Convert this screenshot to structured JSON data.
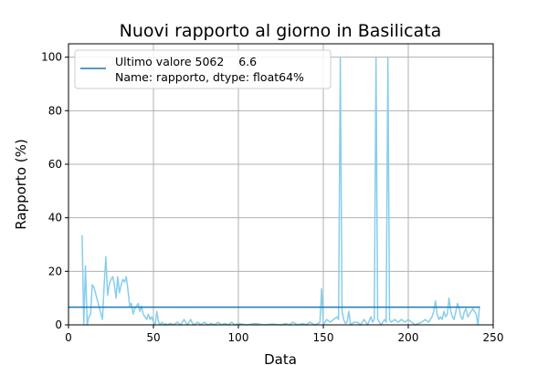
{
  "chart_data": {
    "type": "line",
    "title": "Nuovi rapporto al giorno in Basilicata",
    "xlabel": "Data",
    "ylabel": "Rapporto (%)",
    "xlim": [
      0,
      250
    ],
    "ylim": [
      0,
      105
    ],
    "xticks": [
      0,
      50,
      100,
      150,
      200,
      250
    ],
    "yticks": [
      0,
      20,
      40,
      60,
      80,
      100
    ],
    "grid": true,
    "legend_position": "top-left",
    "legend": {
      "line1": "Ultimo valore 5062    6.6",
      "line2": "Name: rapporto, dtype: float64%"
    },
    "colors": {
      "series": "#87ceeb",
      "reference": "#1f77b4"
    },
    "reference_line": {
      "y": 6.6,
      "x_start": 0,
      "x_end": 242
    },
    "series": [
      {
        "values": [
          [
            8,
            33.5
          ],
          [
            9,
            0
          ],
          [
            10,
            22
          ],
          [
            11,
            0
          ],
          [
            12,
            3
          ],
          [
            13,
            4
          ],
          [
            14,
            15
          ],
          [
            15,
            14
          ],
          [
            20,
            2
          ],
          [
            21,
            15
          ],
          [
            22,
            25.5
          ],
          [
            23,
            11
          ],
          [
            24,
            15
          ],
          [
            25,
            17
          ],
          [
            26,
            18
          ],
          [
            27,
            15
          ],
          [
            28,
            10
          ],
          [
            29,
            18
          ],
          [
            30,
            12
          ],
          [
            31,
            15
          ],
          [
            32,
            17
          ],
          [
            33,
            16
          ],
          [
            34,
            18
          ],
          [
            35,
            13
          ],
          [
            36,
            7
          ],
          [
            37,
            8
          ],
          [
            38,
            4
          ],
          [
            39,
            6
          ],
          [
            40,
            7
          ],
          [
            41,
            8
          ],
          [
            42,
            5
          ],
          [
            43,
            7
          ],
          [
            44,
            4
          ],
          [
            45,
            3
          ],
          [
            46,
            2
          ],
          [
            47,
            4
          ],
          [
            48,
            2
          ],
          [
            49,
            3
          ],
          [
            50,
            1
          ],
          [
            51,
            0
          ],
          [
            52,
            5
          ],
          [
            53,
            1
          ],
          [
            54,
            0
          ],
          [
            55,
            1
          ],
          [
            56,
            0
          ],
          [
            57,
            0.5
          ],
          [
            58,
            0
          ],
          [
            60,
            0.5
          ],
          [
            62,
            0
          ],
          [
            64,
            1
          ],
          [
            66,
            0
          ],
          [
            68,
            2
          ],
          [
            69,
            1
          ],
          [
            70,
            0
          ],
          [
            71,
            1
          ],
          [
            72,
            2
          ],
          [
            73,
            0.5
          ],
          [
            74,
            0
          ],
          [
            76,
            1
          ],
          [
            78,
            0
          ],
          [
            80,
            1
          ],
          [
            82,
            0
          ],
          [
            84,
            0.5
          ],
          [
            86,
            0
          ],
          [
            88,
            1
          ],
          [
            90,
            0
          ],
          [
            92,
            0.5
          ],
          [
            94,
            0
          ],
          [
            96,
            1
          ],
          [
            98,
            0
          ],
          [
            100,
            0.5
          ],
          [
            105,
            0
          ],
          [
            110,
            0.5
          ],
          [
            115,
            0
          ],
          [
            120,
            0.3
          ],
          [
            125,
            0
          ],
          [
            128,
            0.5
          ],
          [
            130,
            0
          ],
          [
            132,
            1
          ],
          [
            135,
            0
          ],
          [
            138,
            0.5
          ],
          [
            140,
            0
          ],
          [
            142,
            1
          ],
          [
            145,
            0
          ],
          [
            147,
            0.5
          ],
          [
            148,
            1
          ],
          [
            149,
            13.5
          ],
          [
            150,
            0
          ],
          [
            152,
            2
          ],
          [
            154,
            1
          ],
          [
            156,
            2
          ],
          [
            158,
            3
          ],
          [
            159,
            2
          ],
          [
            160,
            100
          ],
          [
            161,
            5
          ],
          [
            162,
            2
          ],
          [
            163,
            0.5
          ],
          [
            164,
            1
          ],
          [
            165,
            5
          ],
          [
            166,
            0
          ],
          [
            168,
            1
          ],
          [
            170,
            1
          ],
          [
            172,
            0
          ],
          [
            174,
            2
          ],
          [
            176,
            0
          ],
          [
            178,
            3
          ],
          [
            179,
            1
          ],
          [
            180,
            2
          ],
          [
            181,
            100
          ],
          [
            182,
            2
          ],
          [
            183,
            1
          ],
          [
            184,
            0
          ],
          [
            185,
            1
          ],
          [
            186,
            2
          ],
          [
            187,
            1
          ],
          [
            188,
            100
          ],
          [
            189,
            2
          ],
          [
            190,
            1
          ],
          [
            192,
            2
          ],
          [
            194,
            1
          ],
          [
            196,
            2
          ],
          [
            198,
            1
          ],
          [
            200,
            2
          ],
          [
            202,
            1
          ],
          [
            204,
            0
          ],
          [
            206,
            0.5
          ],
          [
            208,
            1
          ],
          [
            210,
            2
          ],
          [
            212,
            1
          ],
          [
            214,
            3
          ],
          [
            215,
            5
          ],
          [
            216,
            9
          ],
          [
            217,
            4
          ],
          [
            218,
            2
          ],
          [
            219,
            3
          ],
          [
            220,
            2
          ],
          [
            221,
            5
          ],
          [
            222,
            3
          ],
          [
            223,
            4
          ],
          [
            224,
            10
          ],
          [
            225,
            5
          ],
          [
            226,
            3
          ],
          [
            227,
            2
          ],
          [
            228,
            5
          ],
          [
            229,
            8
          ],
          [
            230,
            6
          ],
          [
            231,
            3
          ],
          [
            232,
            2
          ],
          [
            233,
            5
          ],
          [
            234,
            6
          ],
          [
            235,
            3
          ],
          [
            236,
            4
          ],
          [
            237,
            5
          ],
          [
            238,
            6
          ],
          [
            239,
            5
          ],
          [
            240,
            4
          ],
          [
            241,
            0
          ],
          [
            242,
            7
          ]
        ]
      }
    ]
  }
}
